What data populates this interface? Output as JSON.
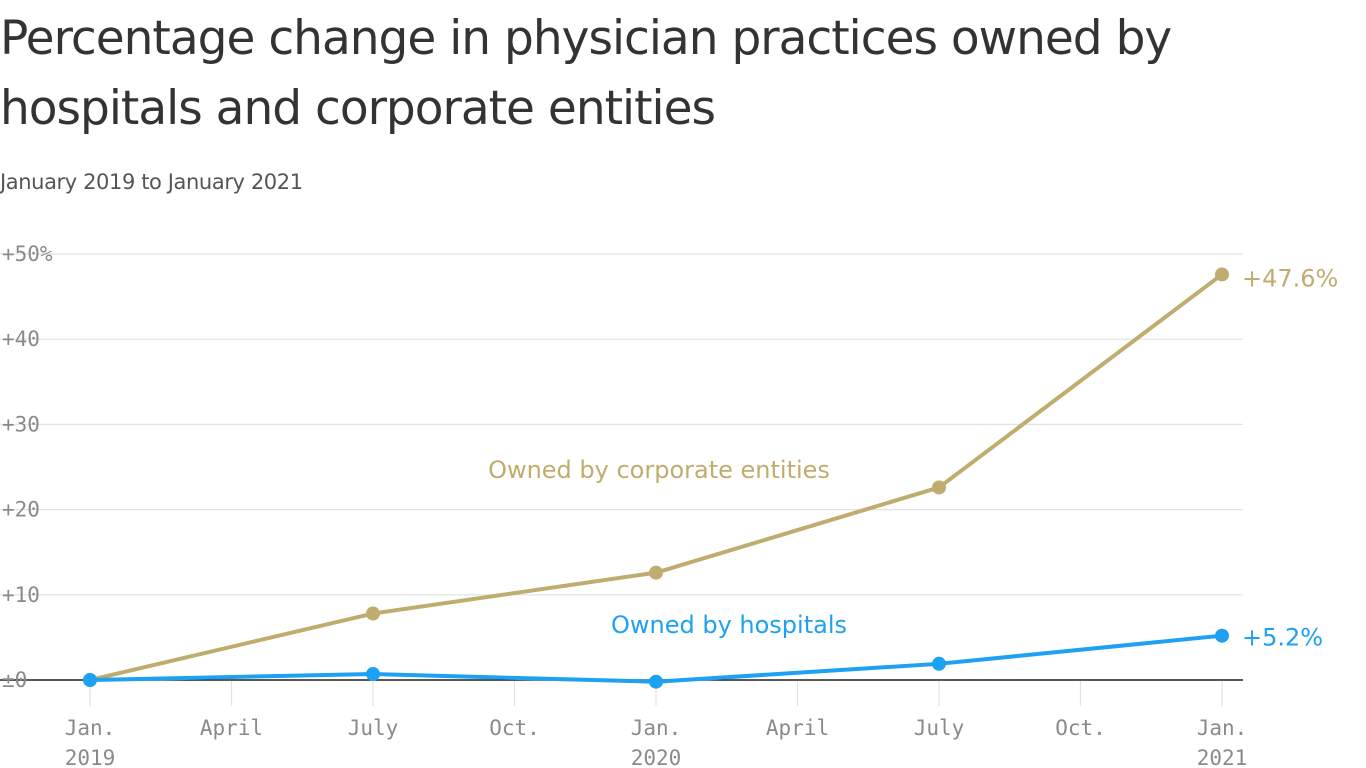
{
  "colors": {
    "corporate": "#bfac6e",
    "hospitals": "#1da1f2",
    "grid": "#e2e2e2",
    "baseline": "#222222",
    "tick": "#8a8a8a"
  },
  "chart_data": {
    "type": "line",
    "title": "Percentage change in physician practices owned by hospitals and corporate entities",
    "subtitle": "January 2019 to January 2021",
    "xlabel": "",
    "ylabel": "",
    "x": [
      0,
      6,
      12,
      18,
      24
    ],
    "xlim": [
      0,
      24
    ],
    "ylim": [
      0,
      50
    ],
    "grid": true,
    "y_ticks": [
      {
        "value": 0,
        "label": "±0"
      },
      {
        "value": 10,
        "label": "+10"
      },
      {
        "value": 20,
        "label": "+20"
      },
      {
        "value": 30,
        "label": "+30"
      },
      {
        "value": 40,
        "label": "+40"
      },
      {
        "value": 50,
        "label": "+50%"
      }
    ],
    "x_ticks": [
      {
        "value": 0,
        "line1": "Jan.",
        "line2": "2019"
      },
      {
        "value": 3,
        "line1": "April",
        "line2": ""
      },
      {
        "value": 6,
        "line1": "July",
        "line2": ""
      },
      {
        "value": 9,
        "line1": "Oct.",
        "line2": ""
      },
      {
        "value": 12,
        "line1": "Jan.",
        "line2": "2020"
      },
      {
        "value": 15,
        "line1": "April",
        "line2": ""
      },
      {
        "value": 18,
        "line1": "July",
        "line2": ""
      },
      {
        "value": 21,
        "line1": "Oct.",
        "line2": ""
      },
      {
        "value": 24,
        "line1": "Jan.",
        "line2": "2021"
      }
    ],
    "series": [
      {
        "key": "corporate",
        "name": "Owned by corporate entities",
        "values": [
          0,
          7.8,
          12.6,
          22.6,
          47.6
        ],
        "end_label": "+47.6%",
        "color": "#bfac6e"
      },
      {
        "key": "hospitals",
        "name": "Owned by hospitals",
        "values": [
          0,
          0.7,
          -0.2,
          1.9,
          5.2
        ],
        "end_label": "+5.2%",
        "color": "#1da1f2"
      }
    ]
  }
}
